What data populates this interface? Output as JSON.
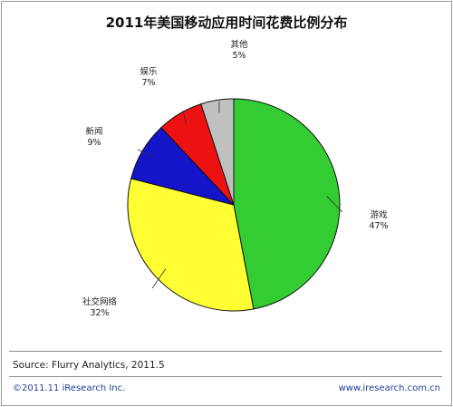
{
  "chart_data": {
    "type": "pie",
    "title": "2011年美国移动应用时间花费比例分布",
    "slices": [
      {
        "label": "游戏",
        "value": 47,
        "value_label": "47%",
        "color": "#33cc33"
      },
      {
        "label": "社交网络",
        "value": 32,
        "value_label": "32%",
        "color": "#ffff33"
      },
      {
        "label": "新闻",
        "value": 9,
        "value_label": "9%",
        "color": "#1414c8"
      },
      {
        "label": "娱乐",
        "value": 7,
        "value_label": "7%",
        "color": "#ee1111"
      },
      {
        "label": "其他",
        "value": 5,
        "value_label": "5%",
        "color": "#c0c0c0"
      }
    ]
  },
  "footer": {
    "source": "Source:  Flurry Analytics, 2011.5",
    "copyright": "©2011.11 iResearch Inc.",
    "website": "www.iresearch.com.cn"
  }
}
